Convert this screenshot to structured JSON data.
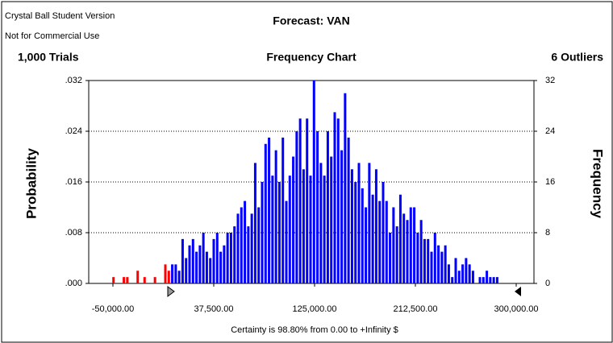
{
  "chart_data": {
    "type": "histogram",
    "header_line1": "Crystal Ball Student Version",
    "header_line2": "Not for Commercial Use",
    "title": "Forecast: VAN",
    "trials": "1,000 Trials",
    "subtitle": "Frequency Chart",
    "outliers": "6 Outliers",
    "ylabel": "Probability",
    "y2label": "Frequency",
    "footer": "Certainty is 98.80% from 0.00 to +Infinity $",
    "x": [
      -49500,
      -40500,
      -37500,
      -28500,
      -22500,
      -13500,
      -4500,
      -1500,
      1500,
      4500,
      7500,
      10500,
      13500,
      16500,
      19500,
      22500,
      25500,
      28500,
      31500,
      34500,
      37500,
      40500,
      43500,
      46500,
      49500,
      52500,
      55500,
      58500,
      61500,
      64500,
      67500,
      70500,
      73500,
      76500,
      79500,
      82500,
      85500,
      88500,
      91500,
      94500,
      97500,
      100500,
      103500,
      106500,
      109500,
      112500,
      115500,
      118500,
      121500,
      124500,
      127500,
      130500,
      133500,
      136500,
      139500,
      142500,
      145500,
      148500,
      151500,
      154500,
      157500,
      160500,
      163500,
      166500,
      169500,
      172500,
      175500,
      178500,
      181500,
      184500,
      187500,
      190500,
      193500,
      196500,
      199500,
      202500,
      205500,
      208500,
      211500,
      214500,
      217500,
      220500,
      223500,
      226500,
      229500,
      232500,
      235500,
      238500,
      241500,
      244500,
      247500,
      250500,
      253500,
      256500,
      259500,
      262500,
      265500,
      268500,
      271500,
      274500,
      277500,
      280500,
      283500
    ],
    "values": [
      1,
      1,
      1,
      2,
      1,
      1,
      3,
      2,
      3,
      3,
      2,
      7,
      4,
      6,
      7,
      5,
      6,
      8,
      5,
      4,
      7,
      8,
      5,
      6,
      8,
      8,
      9,
      11,
      12,
      13,
      9,
      11,
      19,
      12,
      16,
      22,
      23,
      17,
      21,
      16,
      23,
      13,
      17,
      20,
      24,
      26,
      18,
      26,
      17,
      32,
      24,
      19,
      17,
      24,
      20,
      27,
      26,
      21,
      30,
      23,
      18,
      16,
      19,
      15,
      12,
      19,
      14,
      18,
      13,
      16,
      13,
      8,
      12,
      9,
      14,
      11,
      10,
      12,
      12,
      8,
      10,
      7,
      7,
      5,
      8,
      6,
      5,
      6,
      3,
      1,
      4,
      2,
      3,
      4,
      3,
      2,
      0,
      1,
      1,
      2,
      1,
      1,
      1
    ],
    "colors": [
      "#ff0000",
      "#ff0000",
      "#ff0000",
      "#ff0000",
      "#ff0000",
      "#ff0000",
      "#ff0000",
      "#ff0000",
      "#0000ff",
      "#0000ff",
      "#0000ff",
      "#0000ff",
      "#0000ff",
      "#0000ff",
      "#0000ff",
      "#0000ff",
      "#0000ff",
      "#0000ff",
      "#0000ff",
      "#0000ff",
      "#0000ff",
      "#0000ff",
      "#0000ff",
      "#0000ff",
      "#0000ff",
      "#0000ff",
      "#0000ff",
      "#0000ff",
      "#0000ff",
      "#0000ff",
      "#0000ff",
      "#0000ff",
      "#0000ff",
      "#0000ff",
      "#0000ff",
      "#0000ff",
      "#0000ff",
      "#0000ff",
      "#0000ff",
      "#0000ff",
      "#0000ff",
      "#0000ff",
      "#0000ff",
      "#0000ff",
      "#0000ff",
      "#0000ff",
      "#0000ff",
      "#0000ff",
      "#0000ff",
      "#0000ff",
      "#0000ff",
      "#0000ff",
      "#0000ff",
      "#0000ff",
      "#0000ff",
      "#0000ff",
      "#0000ff",
      "#0000ff",
      "#0000ff",
      "#0000ff",
      "#0000ff",
      "#0000ff",
      "#0000ff",
      "#0000ff",
      "#0000ff",
      "#0000ff",
      "#0000ff",
      "#0000ff",
      "#0000ff",
      "#0000ff",
      "#0000ff",
      "#0000ff",
      "#0000ff",
      "#0000ff",
      "#0000ff",
      "#0000ff",
      "#0000ff",
      "#0000ff",
      "#0000ff",
      "#0000ff",
      "#0000ff",
      "#0000ff",
      "#0000ff",
      "#0000ff",
      "#0000ff",
      "#0000ff",
      "#0000ff",
      "#0000ff",
      "#0000ff",
      "#0000ff",
      "#0000ff",
      "#0000ff",
      "#0000ff",
      "#0000ff",
      "#0000ff",
      "#0000ff",
      "#0000ff",
      "#0000ff",
      "#0000ff",
      "#0000ff",
      "#0000ff",
      "#0000ff",
      "#0000ff"
    ],
    "xlim": [
      -71000,
      315400
    ],
    "xticks": [
      {
        "value": -50000,
        "label": "-50,000.00"
      },
      {
        "value": 37500,
        "label": "37,500.00"
      },
      {
        "value": 125000,
        "label": "125,000.00"
      },
      {
        "value": 212500,
        "label": "212,500.00"
      },
      {
        "value": 300000,
        "label": "300,000.00"
      }
    ],
    "ylim": [
      0,
      0.032
    ],
    "yticks": [
      {
        "value": 0,
        "label": ".000"
      },
      {
        "value": 0.008,
        "label": ".008"
      },
      {
        "value": 0.016,
        "label": ".016"
      },
      {
        "value": 0.024,
        "label": ".024"
      },
      {
        "value": 0.032,
        "label": ".032"
      }
    ],
    "y2lim": [
      0,
      32
    ],
    "y2ticks": [
      0,
      8,
      16,
      24,
      32
    ],
    "axis": "y2",
    "grid": true
  }
}
